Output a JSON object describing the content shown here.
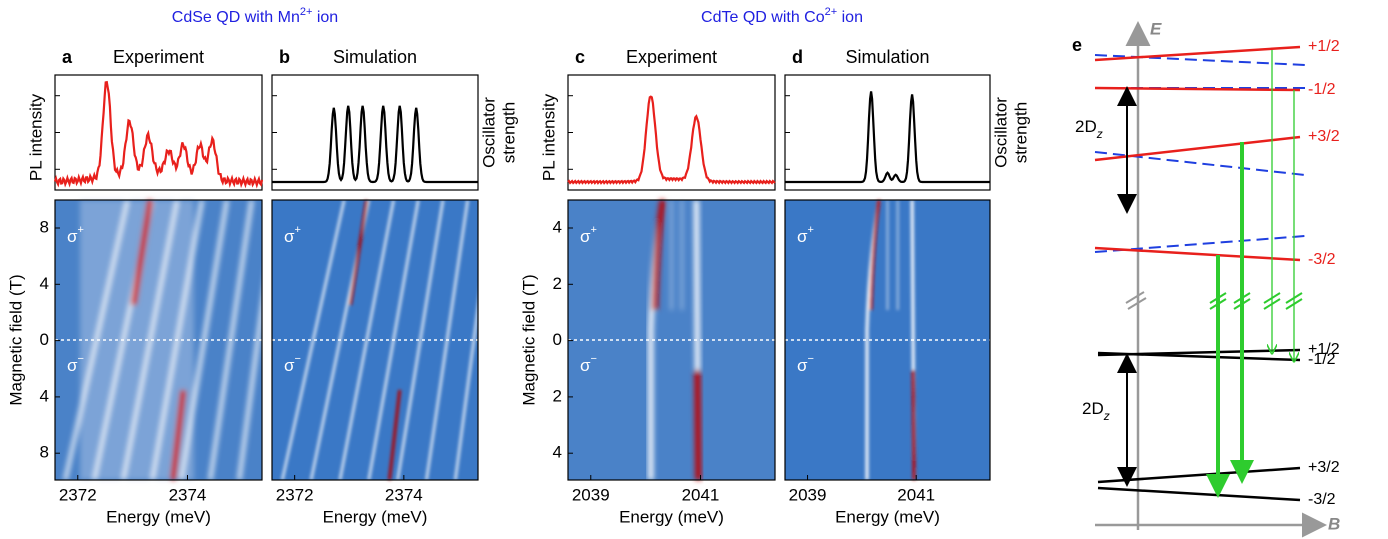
{
  "figure": {
    "titles": [
      {
        "text": "CdSe QD with Mn",
        "sup": "2+",
        "tail": " ion"
      },
      {
        "text": "CdTe QD with Co",
        "sup": "2+",
        "tail": " ion"
      }
    ],
    "panels": [
      {
        "letter": "a",
        "title": "Experiment",
        "left_top_label": "PL intensity",
        "left_label": "Magnetic field (T)",
        "yticks": [
          "8",
          "4",
          "0",
          "4",
          "8"
        ],
        "xticks": [
          "2372",
          "2374"
        ],
        "xlabel": "Energy (meV)",
        "sigma": "σ",
        "plus": "+",
        "minus": "−"
      },
      {
        "letter": "b",
        "title": "Simulation",
        "right_top_label": [
          "Oscillator",
          "strength"
        ],
        "xticks": [
          "2372",
          "2374"
        ],
        "xlabel": "Energy (meV)",
        "sigma": "σ",
        "plus": "+",
        "minus": "−"
      },
      {
        "letter": "c",
        "title": "Experiment",
        "left_top_label": "PL intensity",
        "left_label": "Magnetic field (T)",
        "yticks": [
          "4",
          "2",
          "0",
          "2",
          "4"
        ],
        "xticks": [
          "2039",
          "2041"
        ],
        "xlabel": "Energy (meV)",
        "sigma": "σ",
        "plus": "+",
        "minus": "−"
      },
      {
        "letter": "d",
        "title": "Simulation",
        "right_top_label": [
          "Oscillator",
          "strength"
        ],
        "xticks": [
          "2039",
          "2041"
        ],
        "xlabel": "Energy (meV)",
        "sigma": "σ",
        "plus": "+",
        "minus": "−"
      }
    ],
    "diagram": {
      "letter": "e",
      "e_axis": "E",
      "b_axis": "B",
      "upper_levels": [
        "+1/2",
        "-1/2",
        "+3/2",
        "-3/2"
      ],
      "lower_levels": [
        "+1/2",
        "-1/2",
        "+3/2",
        "-3/2"
      ],
      "splitting": "2D",
      "splitting_sub": "z"
    }
  }
}
